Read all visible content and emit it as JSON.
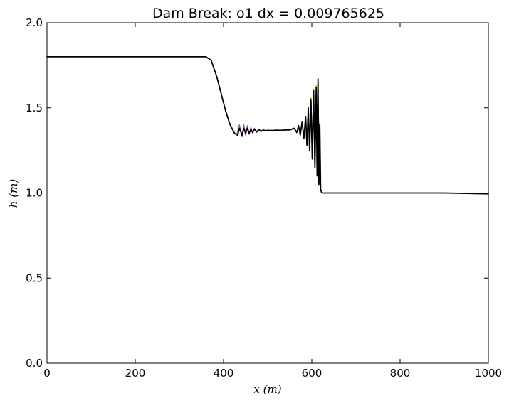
{
  "chart_data": {
    "type": "line",
    "title": "Dam Break: o1 dx = 0.009765625",
    "xlabel": "x (m)",
    "ylabel": "h (m)",
    "xlim": [
      0,
      1000
    ],
    "ylim": [
      0.0,
      2.0
    ],
    "xticks": [
      0,
      200,
      400,
      600,
      800,
      1000
    ],
    "xtick_labels": [
      "0",
      "200",
      "400",
      "600",
      "800",
      "1000"
    ],
    "yticks": [
      0.0,
      0.5,
      1.0,
      1.5,
      2.0
    ],
    "ytick_labels": [
      "0.0",
      "0.5",
      "1.0",
      "1.5",
      "2.0"
    ],
    "grid": false,
    "legend": "none",
    "series": [
      {
        "color": "#000000",
        "x": [
          0,
          100,
          200,
          300,
          360,
          372,
          385,
          395,
          405,
          415,
          425,
          432,
          436,
          442,
          446,
          450,
          454,
          458,
          462,
          466,
          470,
          475,
          480,
          485,
          490,
          495,
          500,
          510,
          520,
          530,
          540,
          550,
          560,
          566,
          570,
          574,
          578,
          582,
          586,
          589,
          592,
          595,
          598,
          601,
          604,
          607,
          610,
          612,
          614,
          616,
          618,
          620,
          622,
          624,
          630,
          700,
          800,
          900,
          1000
        ],
        "y": [
          1.8,
          1.8,
          1.8,
          1.8,
          1.8,
          1.78,
          1.68,
          1.58,
          1.48,
          1.4,
          1.35,
          1.34,
          1.38,
          1.34,
          1.38,
          1.35,
          1.38,
          1.35,
          1.375,
          1.355,
          1.375,
          1.36,
          1.372,
          1.362,
          1.37,
          1.366,
          1.368,
          1.367,
          1.369,
          1.368,
          1.37,
          1.37,
          1.38,
          1.355,
          1.395,
          1.34,
          1.42,
          1.32,
          1.45,
          1.28,
          1.5,
          1.25,
          1.55,
          1.2,
          1.6,
          1.15,
          1.62,
          1.1,
          1.67,
          1.05,
          1.4,
          1.02,
          1.005,
          1.0,
          1.0,
          1.0,
          1.0,
          1.0,
          0.995
        ]
      },
      {
        "color": "#9b59b6",
        "x": [
          430,
          436,
          442,
          446,
          450,
          454,
          458,
          462,
          466,
          470,
          475,
          480,
          485,
          490,
          495,
          500
        ],
        "y": [
          1.34,
          1.4,
          1.33,
          1.4,
          1.34,
          1.395,
          1.345,
          1.385,
          1.35,
          1.38,
          1.355,
          1.375,
          1.36,
          1.372,
          1.364,
          1.368
        ]
      },
      {
        "color": "#ccb500",
        "x": [
          598,
          601,
          604,
          607,
          610,
          612,
          614,
          616,
          618,
          620,
          622,
          624
        ],
        "y": [
          1.56,
          1.2,
          1.61,
          1.15,
          1.63,
          1.1,
          1.66,
          1.05,
          1.42,
          1.02,
          1.005,
          1.0
        ]
      }
    ]
  }
}
